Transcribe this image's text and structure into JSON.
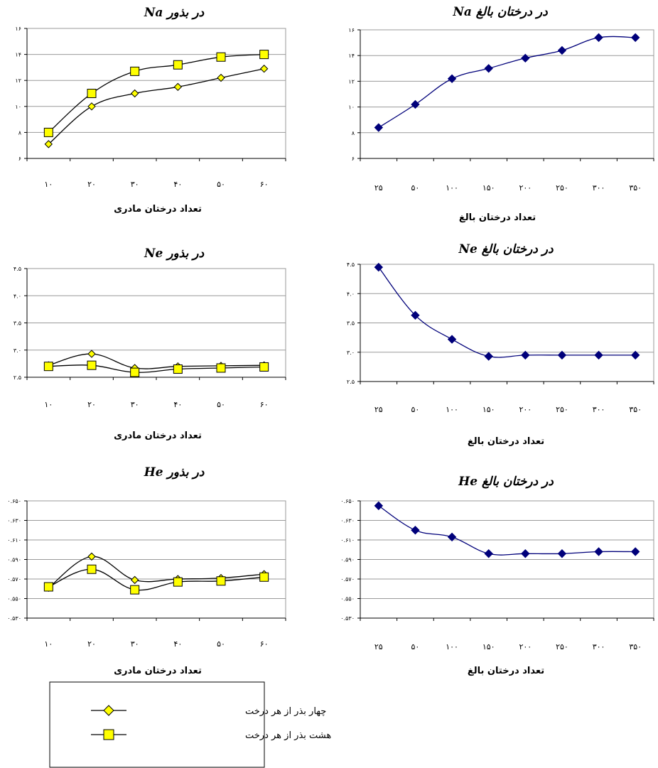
{
  "colors": {
    "navy": "#00007a",
    "seed_fill": "#ffff00",
    "marker_stroke": "#000000",
    "grid": "#9a9a9a"
  },
  "legend": {
    "items": [
      {
        "label": "چهار بذر از هر درخت",
        "marker": "diamond"
      },
      {
        "label": "هشت بذر از هر درخت",
        "marker": "square"
      }
    ]
  },
  "chart_data": [
    {
      "id": "na-seeds",
      "type": "line",
      "title": "در بذور Na",
      "xlabel": "تعداد درختان مادری",
      "categories": [
        "۱۰",
        "۲۰",
        "۳۰",
        "۴۰",
        "۵۰",
        "۶۰"
      ],
      "yticks": [
        "۶",
        "۸",
        "۱۰",
        "۱۲",
        "۱۴",
        "۱۶"
      ],
      "ylim": [
        6,
        16
      ],
      "grid": true,
      "series": [
        {
          "name": "چهار بذر از هر درخت",
          "marker": "diamond",
          "values": [
            7.1,
            10.0,
            11.0,
            11.5,
            12.2,
            12.9
          ]
        },
        {
          "name": "هشت بذر از هر درخت",
          "marker": "square",
          "values": [
            8.0,
            11.0,
            12.7,
            13.2,
            13.8,
            14.0
          ]
        }
      ]
    },
    {
      "id": "na-adult",
      "type": "line",
      "title": "در درختان بالغ Na",
      "xlabel": "تعداد درختان بالغ",
      "categories": [
        "۲۵",
        "۵۰",
        "۱۰۰",
        "۱۵۰",
        "۲۰۰",
        "۲۵۰",
        "۳۰۰",
        "۳۵۰"
      ],
      "yticks": [
        "۶",
        "۸",
        "۱۰",
        "۱۲",
        "۱۴",
        "۱۶"
      ],
      "ylim": [
        6,
        16
      ],
      "grid": true,
      "series": [
        {
          "marker": "diamond",
          "values": [
            8.4,
            10.2,
            12.2,
            13.0,
            13.8,
            14.4,
            15.4,
            15.4
          ]
        }
      ]
    },
    {
      "id": "ne-seeds",
      "type": "line",
      "title": "در بذور Ne",
      "xlabel": "تعداد درختان مادری",
      "categories": [
        "۱۰",
        "۲۰",
        "۳۰",
        "۴۰",
        "۵۰",
        "۶۰"
      ],
      "yticks": [
        "۲.۵",
        "۳.۰",
        "۳.۵",
        "۴.۰",
        "۴.۵"
      ],
      "ylim": [
        2.5,
        4.5
      ],
      "grid": true,
      "series": [
        {
          "name": "چهار بذر از هر درخت",
          "marker": "diamond",
          "values": [
            2.72,
            2.93,
            2.67,
            2.7,
            2.71,
            2.72
          ]
        },
        {
          "name": "هشت بذر از هر درخت",
          "marker": "square",
          "values": [
            2.7,
            2.72,
            2.59,
            2.65,
            2.67,
            2.69
          ]
        }
      ]
    },
    {
      "id": "ne-adult",
      "type": "line",
      "title": "در درختان بالغ Ne",
      "xlabel": "تعداد درختان بالغ",
      "categories": [
        "۲۵",
        "۵۰",
        "۱۰۰",
        "۱۵۰",
        "۲۰۰",
        "۲۵۰",
        "۳۰۰",
        "۳۵۰"
      ],
      "yticks": [
        "۲.۵",
        "۳.۰",
        "۳.۵",
        "۴.۰",
        "۴.۵"
      ],
      "ylim": [
        2.5,
        4.5
      ],
      "grid": true,
      "series": [
        {
          "marker": "diamond",
          "values": [
            4.45,
            3.63,
            3.22,
            2.93,
            2.95,
            2.95,
            2.95,
            2.95
          ]
        }
      ]
    },
    {
      "id": "he-seeds",
      "type": "line",
      "title": "در بذور He",
      "xlabel": "تعداد درختان مادری",
      "categories": [
        "۱۰",
        "۲۰",
        "۳۰",
        "۴۰",
        "۵۰",
        "۶۰"
      ],
      "yticks": [
        "۰.۵۳۰",
        "۰.۵۵۰",
        "۰.۵۷۰",
        "۰.۵۹۰",
        "۰.۶۱۰",
        "۰.۶۳۰",
        "۰.۶۵۰"
      ],
      "ylim": [
        0.53,
        0.65
      ],
      "grid": true,
      "series": [
        {
          "name": "چهار بذر از هر درخت",
          "marker": "diamond",
          "values": [
            0.561,
            0.593,
            0.569,
            0.57,
            0.571,
            0.575
          ]
        },
        {
          "name": "هشت بذر از هر درخت",
          "marker": "square",
          "values": [
            0.562,
            0.58,
            0.559,
            0.567,
            0.568,
            0.572
          ]
        }
      ]
    },
    {
      "id": "he-adult",
      "type": "line",
      "title": "در درختان بالغ He",
      "xlabel": "تعداد درختان بالغ",
      "categories": [
        "۲۵",
        "۵۰",
        "۱۰۰",
        "۱۵۰",
        "۲۰۰",
        "۲۵۰",
        "۳۰۰",
        "۳۵۰"
      ],
      "yticks": [
        "۰.۵۳۰",
        "۰.۵۵۰",
        "۰.۵۷۰",
        "۰.۵۹۰",
        "۰.۶۱۰",
        "۰.۶۳۰",
        "۰.۶۵۰"
      ],
      "ylim": [
        0.53,
        0.65
      ],
      "grid": true,
      "series": [
        {
          "marker": "diamond",
          "values": [
            0.645,
            0.62,
            0.613,
            0.596,
            0.596,
            0.596,
            0.598,
            0.598
          ]
        }
      ]
    }
  ]
}
